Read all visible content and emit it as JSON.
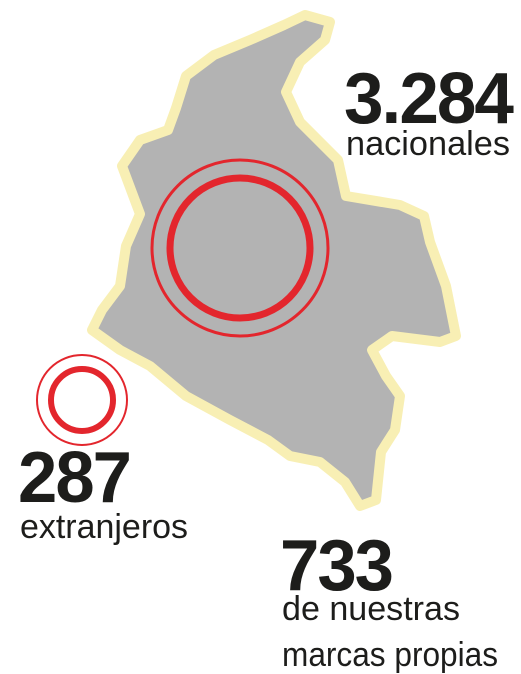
{
  "items": [
    {
      "value": "3.284",
      "label": "nacionales"
    },
    {
      "value": "287",
      "label": "extranjeros"
    },
    {
      "value": "733",
      "label_lines": [
        "de nuestras",
        "marcas propias"
      ]
    }
  ]
}
